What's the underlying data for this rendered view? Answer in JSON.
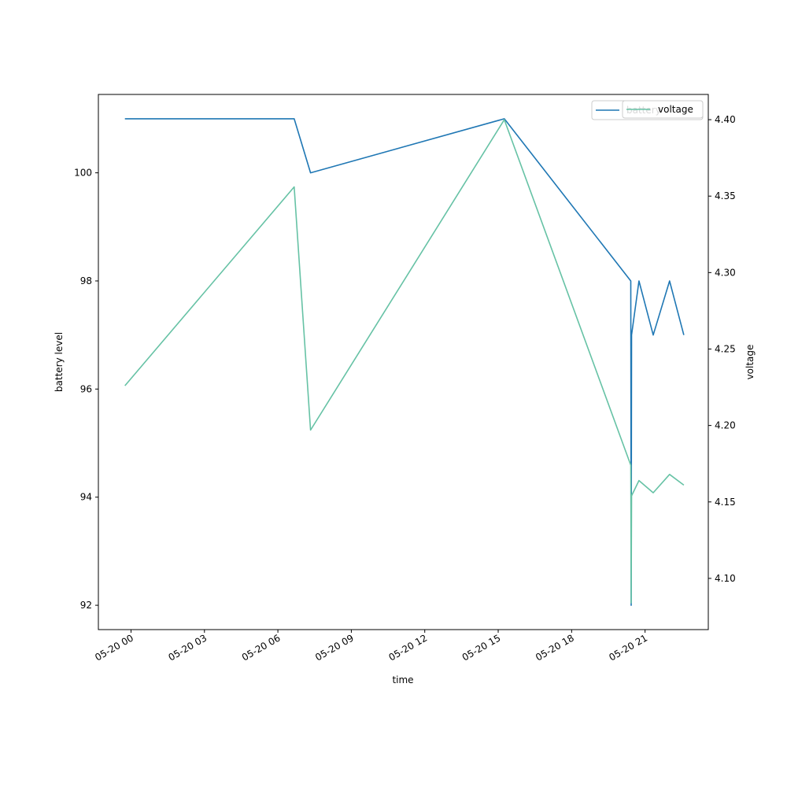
{
  "chart_data": {
    "type": "line",
    "title": "",
    "xlabel": "time",
    "ylabel": "battery level",
    "y2label": "voltage",
    "xlim": [
      "2020-05-19T22:40",
      "2020-05-20T23:35"
    ],
    "ylim": [
      91.55,
      101.45
    ],
    "y2lim": [
      4.0665,
      4.4165
    ],
    "x_ticks": [
      "2020-05-20T00:00",
      "2020-05-20T03:00",
      "2020-05-20T06:00",
      "2020-05-20T09:00",
      "2020-05-20T12:00",
      "2020-05-20T15:00",
      "2020-05-20T18:00",
      "2020-05-20T21:00"
    ],
    "x_tick_labels": [
      "05-20 00",
      "05-20 03",
      "05-20 06",
      "05-20 09",
      "05-20 12",
      "05-20 15",
      "05-20 18",
      "05-20 21"
    ],
    "y_ticks": [
      92,
      94,
      96,
      98,
      100
    ],
    "y_tick_labels": [
      "92",
      "94",
      "96",
      "98",
      "100"
    ],
    "y2_ticks": [
      4.1,
      4.15,
      4.2,
      4.25,
      4.3,
      4.35,
      4.4
    ],
    "y2_tick_labels": [
      "4.10",
      "4.15",
      "4.20",
      "4.25",
      "4.30",
      "4.35",
      "4.40"
    ],
    "grid": false,
    "legend_placement": "top-right",
    "series": [
      {
        "name": "battery",
        "axis": "left",
        "color": "#1f77b4",
        "points": [
          {
            "x": "2020-05-19T23:45",
            "y": 101
          },
          {
            "x": "2020-05-20T06:40",
            "y": 101
          },
          {
            "x": "2020-05-20T07:20",
            "y": 100
          },
          {
            "x": "2020-05-20T15:15",
            "y": 101
          },
          {
            "x": "2020-05-20T20:25",
            "y": 98
          },
          {
            "x": "2020-05-20T20:26",
            "y": 92
          },
          {
            "x": "2020-05-20T20:27",
            "y": 97
          },
          {
            "x": "2020-05-20T20:45",
            "y": 98
          },
          {
            "x": "2020-05-20T21:20",
            "y": 97
          },
          {
            "x": "2020-05-20T22:00",
            "y": 98
          },
          {
            "x": "2020-05-20T22:35",
            "y": 97
          }
        ]
      },
      {
        "name": "voltage",
        "axis": "right",
        "color": "#66c2a5",
        "points": [
          {
            "x": "2020-05-19T23:45",
            "y": 4.226
          },
          {
            "x": "2020-05-20T06:40",
            "y": 4.356
          },
          {
            "x": "2020-05-20T07:20",
            "y": 4.197
          },
          {
            "x": "2020-05-20T15:15",
            "y": 4.4
          },
          {
            "x": "2020-05-20T20:25",
            "y": 4.174
          },
          {
            "x": "2020-05-20T20:26",
            "y": 4.084
          },
          {
            "x": "2020-05-20T20:27",
            "y": 4.154
          },
          {
            "x": "2020-05-20T20:45",
            "y": 4.164
          },
          {
            "x": "2020-05-20T21:20",
            "y": 4.156
          },
          {
            "x": "2020-05-20T22:00",
            "y": 4.168
          },
          {
            "x": "2020-05-20T22:35",
            "y": 4.161
          }
        ]
      }
    ]
  }
}
